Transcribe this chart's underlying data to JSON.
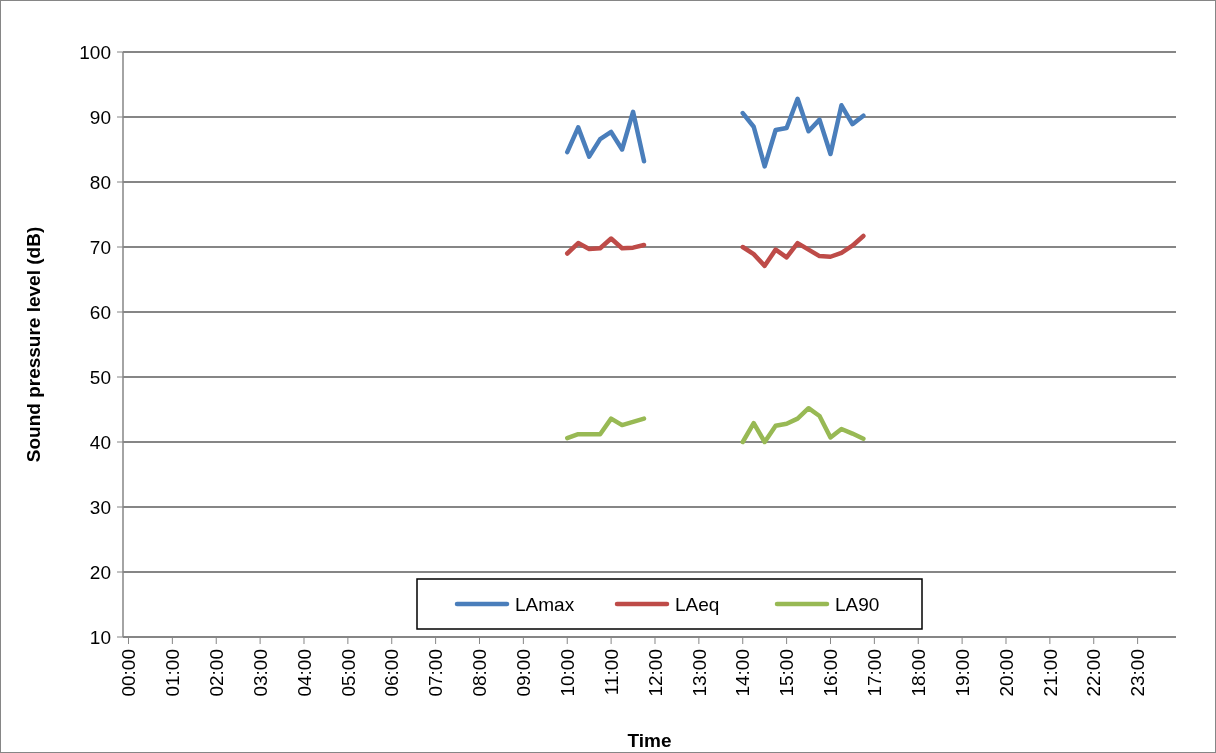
{
  "chart_data": {
    "type": "line",
    "xlabel": "Time",
    "ylabel": "Sound pressure level (dB)",
    "x": [
      10,
      10.25,
      10.5,
      10.75,
      11,
      11.25,
      11.5,
      11.75,
      12,
      14,
      14.25,
      14.5,
      14.75,
      15,
      15.25,
      15.5,
      15.75,
      16,
      16.25,
      16.5,
      16.75
    ],
    "series": [
      {
        "name": "LAmax",
        "color": "#4a7ebb",
        "values": [
          84.6,
          88.4,
          83.9,
          86.6,
          87.7,
          85.0,
          90.8,
          83.2,
          null,
          90.6,
          88.5,
          82.4,
          88.0,
          88.3,
          92.8,
          87.8,
          89.6,
          84.3,
          91.8,
          88.9,
          90.2
        ]
      },
      {
        "name": "LAeq",
        "color": "#be4b48",
        "values": [
          69.0,
          70.6,
          69.7,
          69.8,
          71.3,
          69.8,
          69.9,
          70.3,
          null,
          70.0,
          68.9,
          67.1,
          69.6,
          68.4,
          70.6,
          69.6,
          68.6,
          68.5,
          69.1,
          70.2,
          71.7
        ]
      },
      {
        "name": "LA90",
        "color": "#98b954",
        "values": [
          40.6,
          41.2,
          41.2,
          41.2,
          43.6,
          42.6,
          43.1,
          43.6,
          null,
          40.0,
          42.9,
          40.0,
          42.5,
          42.8,
          43.6,
          45.2,
          44.0,
          40.7,
          42.0,
          41.3,
          40.5
        ]
      }
    ],
    "xlim": [
      -0.125,
      23.875
    ],
    "xticks": [
      {
        "value": 0,
        "label": "00:00"
      },
      {
        "value": 1,
        "label": "01:00"
      },
      {
        "value": 2,
        "label": "02:00"
      },
      {
        "value": 3,
        "label": "03:00"
      },
      {
        "value": 4,
        "label": "04:00"
      },
      {
        "value": 5,
        "label": "05:00"
      },
      {
        "value": 6,
        "label": "06:00"
      },
      {
        "value": 7,
        "label": "07:00"
      },
      {
        "value": 8,
        "label": "08:00"
      },
      {
        "value": 9,
        "label": "09:00"
      },
      {
        "value": 10,
        "label": "10:00"
      },
      {
        "value": 11,
        "label": "11:00"
      },
      {
        "value": 12,
        "label": "12:00"
      },
      {
        "value": 13,
        "label": "13:00"
      },
      {
        "value": 14,
        "label": "14:00"
      },
      {
        "value": 15,
        "label": "15:00"
      },
      {
        "value": 16,
        "label": "16:00"
      },
      {
        "value": 17,
        "label": "17:00"
      },
      {
        "value": 18,
        "label": "18:00"
      },
      {
        "value": 19,
        "label": "19:00"
      },
      {
        "value": 20,
        "label": "20:00"
      },
      {
        "value": 21,
        "label": "21:00"
      },
      {
        "value": 22,
        "label": "22:00"
      },
      {
        "value": 23,
        "label": "23:00"
      }
    ],
    "ylim": [
      10,
      100
    ],
    "yticks": [
      10,
      20,
      30,
      40,
      50,
      60,
      70,
      80,
      90,
      100
    ],
    "grid": "y",
    "legend": "bottom",
    "marker": "none",
    "line_style": "solid"
  }
}
